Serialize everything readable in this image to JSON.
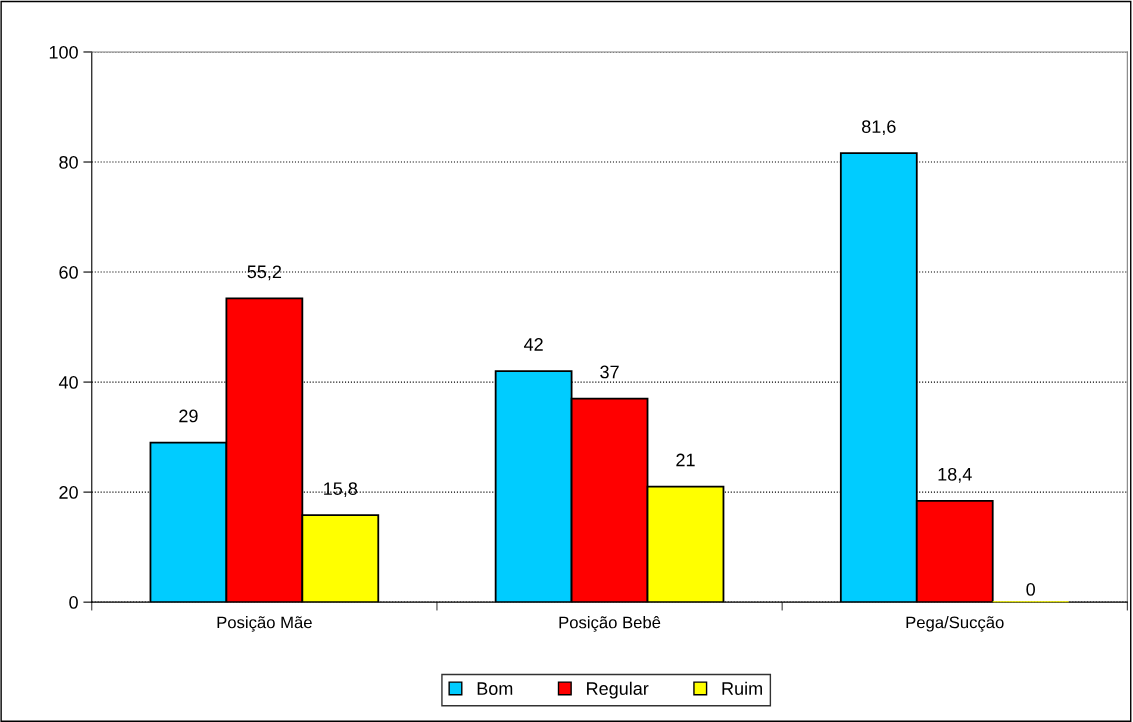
{
  "chart_data": {
    "type": "bar",
    "categories": [
      "Posição Mãe",
      "Posição Bebê",
      "Pega/Sucção"
    ],
    "series": [
      {
        "name": "Bom",
        "color": "#00ccff",
        "values": [
          29,
          42,
          81.6
        ],
        "value_labels": [
          "29",
          "42",
          "81,6"
        ]
      },
      {
        "name": "Regular",
        "color": "#ff0000",
        "values": [
          55.2,
          37,
          18.4
        ],
        "value_labels": [
          "55,2",
          "37",
          "18,4"
        ]
      },
      {
        "name": "Ruim",
        "color": "#ffff00",
        "values": [
          15.8,
          21,
          0
        ],
        "value_labels": [
          "15,8",
          "21",
          "0"
        ]
      }
    ],
    "ylim": [
      0,
      100
    ],
    "yticks": [
      0,
      20,
      40,
      60,
      80,
      100
    ],
    "grid": "y",
    "legend": "bottom"
  }
}
